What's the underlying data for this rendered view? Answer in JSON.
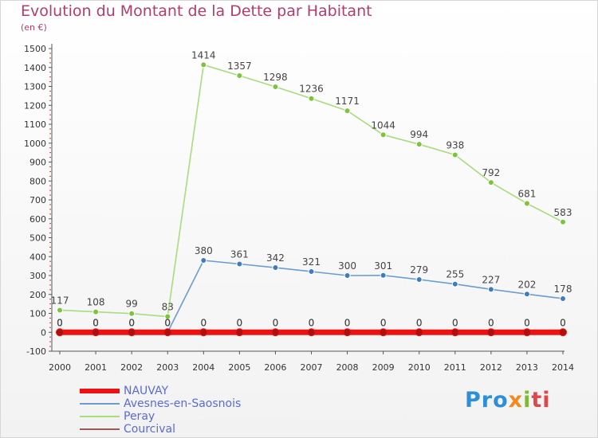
{
  "title": "Evolution du Montant de la Dette par Habitant",
  "subtitle": "(en €)",
  "logo": {
    "p1": "Pro",
    "p2": "x",
    "p3": "i",
    "p4": "ti"
  },
  "chart_data": {
    "type": "line",
    "title": "Evolution du Montant de la Dette par Habitant",
    "ylabel": "(en €)",
    "xlabel": "",
    "ylim": [
      -100,
      1500
    ],
    "yticks": [
      -100,
      0,
      100,
      200,
      300,
      400,
      500,
      600,
      700,
      800,
      900,
      1000,
      1100,
      1200,
      1300,
      1400,
      1500
    ],
    "grid": false,
    "legend": "bottom-left",
    "categories": [
      "2000",
      "2001",
      "2002",
      "2003",
      "2004",
      "2005",
      "2006",
      "2007",
      "2008",
      "2009",
      "2010",
      "2011",
      "2012",
      "2013",
      "2014"
    ],
    "series": [
      {
        "name": "NAUVAY",
        "color": "#ee1111",
        "point_color": "#aa1111",
        "values": [
          0,
          0,
          0,
          0,
          0,
          0,
          0,
          0,
          0,
          0,
          0,
          0,
          0,
          0,
          0
        ],
        "labels": [
          "0",
          "0",
          "0",
          "0",
          "0",
          "0",
          "0",
          "0",
          "0",
          "0",
          "0",
          "0",
          "0",
          "0",
          "0"
        ]
      },
      {
        "name": "Avesnes-en-Saosnois",
        "color": "#6a9ccf",
        "point_color": "#3d7cc4",
        "values": [
          0,
          0,
          0,
          0,
          380,
          361,
          342,
          321,
          300,
          301,
          279,
          255,
          227,
          202,
          178
        ],
        "labels": [
          "0",
          "0",
          "0",
          "0",
          "380",
          "361",
          "342",
          "321",
          "300",
          "301",
          "279",
          "255",
          "227",
          "202",
          "178"
        ]
      },
      {
        "name": "Peray",
        "color": "#a8dc7c",
        "point_color": "#7cc43c",
        "values": [
          117,
          108,
          99,
          83,
          1414,
          1357,
          1298,
          1236,
          1171,
          1044,
          994,
          938,
          792,
          681,
          583
        ],
        "labels": [
          "117",
          "108",
          "99",
          "83",
          "1414",
          "1357",
          "1298",
          "1236",
          "1171",
          "1044",
          "994",
          "938",
          "792",
          "681",
          "583"
        ]
      },
      {
        "name": "Courcival",
        "color": "#9a5a5a",
        "point_color": "#7a3a3a",
        "values": [
          0,
          0,
          0,
          0,
          0,
          0,
          0,
          0,
          0,
          0,
          0,
          0,
          0,
          0,
          0
        ],
        "labels": [
          "0",
          "0",
          "0",
          "0",
          "0",
          "0",
          "0",
          "0",
          "0",
          "0",
          "0",
          "0",
          "0",
          "0",
          "0"
        ]
      }
    ]
  }
}
